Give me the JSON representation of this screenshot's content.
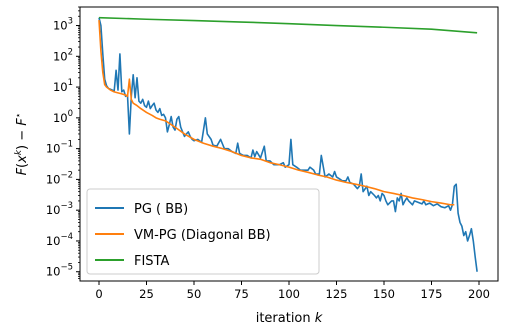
{
  "chart_data": {
    "type": "line",
    "yscale": "log",
    "title": "",
    "xlabel": "iteration k",
    "ylabel": "F(x^k) − F*",
    "xlim": [
      -10,
      210
    ],
    "ylim": [
      5e-06,
      4000
    ],
    "xticks": [
      0,
      25,
      50,
      75,
      100,
      125,
      150,
      175,
      200
    ],
    "yticks": [
      {
        "value": 1000.0,
        "base": "10",
        "exp": "3"
      },
      {
        "value": 100.0,
        "base": "10",
        "exp": "2"
      },
      {
        "value": 10.0,
        "base": "10",
        "exp": "1"
      },
      {
        "value": 1.0,
        "base": "10",
        "exp": "0"
      },
      {
        "value": 0.1,
        "base": "10",
        "exp": "−1"
      },
      {
        "value": 0.01,
        "base": "10",
        "exp": "−2"
      },
      {
        "value": 0.001,
        "base": "10",
        "exp": "−3"
      },
      {
        "value": 0.0001,
        "base": "10",
        "exp": "−4"
      },
      {
        "value": 1e-05,
        "base": "10",
        "exp": "−5"
      }
    ],
    "grid": false,
    "legend_position": "bottom-left",
    "series": [
      {
        "name": "PG ( BB)",
        "color": "#1f77b4",
        "points": [
          [
            0,
            1800
          ],
          [
            1,
            1000
          ],
          [
            2,
            120
          ],
          [
            3,
            18
          ],
          [
            4,
            11
          ],
          [
            5,
            9
          ],
          [
            6,
            8.5
          ],
          [
            7,
            8
          ],
          [
            8,
            7.5
          ],
          [
            9,
            35
          ],
          [
            10,
            8
          ],
          [
            11,
            120
          ],
          [
            12,
            7
          ],
          [
            13,
            8
          ],
          [
            14,
            5
          ],
          [
            15,
            5.5
          ],
          [
            16,
            0.3
          ],
          [
            17,
            5
          ],
          [
            18,
            25
          ],
          [
            19,
            4.5
          ],
          [
            20,
            20
          ],
          [
            21,
            3.5
          ],
          [
            22,
            3
          ],
          [
            23,
            4
          ],
          [
            24,
            2.5
          ],
          [
            25,
            2.2
          ],
          [
            26,
            3.5
          ],
          [
            27,
            2
          ],
          [
            28,
            2.5
          ],
          [
            29,
            3
          ],
          [
            30,
            1.8
          ],
          [
            31,
            1.5
          ],
          [
            32,
            2
          ],
          [
            33,
            1.2
          ],
          [
            34,
            1.3
          ],
          [
            35,
            1
          ],
          [
            36,
            0.35
          ],
          [
            37,
            0.6
          ],
          [
            38,
            1.1
          ],
          [
            39,
            0.5
          ],
          [
            40,
            0.4
          ],
          [
            41,
            0.9
          ],
          [
            42,
            1.1
          ],
          [
            43,
            0.5
          ],
          [
            44,
            0.35
          ],
          [
            45,
            0.25
          ],
          [
            46,
            0.3
          ],
          [
            47,
            0.35
          ],
          [
            48,
            0.25
          ],
          [
            49,
            0.2
          ],
          [
            50,
            0.18
          ],
          [
            52,
            0.2
          ],
          [
            54,
            0.16
          ],
          [
            56,
            1
          ],
          [
            57,
            0.3
          ],
          [
            59,
            0.2
          ],
          [
            60,
            0.13
          ],
          [
            62,
            0.12
          ],
          [
            64,
            0.2
          ],
          [
            66,
            0.1
          ],
          [
            68,
            0.1
          ],
          [
            70,
            0.08
          ],
          [
            72,
            0.07
          ],
          [
            73,
            0.15
          ],
          [
            74,
            0.07
          ],
          [
            76,
            0.06
          ],
          [
            78,
            0.06
          ],
          [
            80,
            0.05
          ],
          [
            81,
            0.09
          ],
          [
            82,
            0.055
          ],
          [
            83,
            0.08
          ],
          [
            85,
            0.05
          ],
          [
            87,
            0.12
          ],
          [
            88,
            0.04
          ],
          [
            90,
            0.04
          ],
          [
            92,
            0.03
          ],
          [
            95,
            0.03
          ],
          [
            97,
            0.035
          ],
          [
            98,
            0.025
          ],
          [
            100,
            0.03
          ],
          [
            101,
            0.2
          ],
          [
            102,
            0.03
          ],
          [
            104,
            0.025
          ],
          [
            106,
            0.02
          ],
          [
            108,
            0.02
          ],
          [
            110,
            0.02
          ],
          [
            111,
            0.025
          ],
          [
            113,
            0.02
          ],
          [
            114,
            0.015
          ],
          [
            116,
            0.015
          ],
          [
            117,
            0.06
          ],
          [
            119,
            0.012
          ],
          [
            121,
            0.015
          ],
          [
            123,
            0.012
          ],
          [
            124,
            0.018
          ],
          [
            125,
            0.012
          ],
          [
            126,
            0.011
          ],
          [
            127,
            0.01
          ],
          [
            128,
            0.009
          ],
          [
            130,
            0.009
          ],
          [
            131,
            0.012
          ],
          [
            132,
            0.008
          ],
          [
            134,
            0.007
          ],
          [
            136,
            0.005
          ],
          [
            137,
            0.006
          ],
          [
            138,
            0.015
          ],
          [
            139,
            0.004
          ],
          [
            141,
            0.006
          ],
          [
            142,
            0.003
          ],
          [
            143,
            0.004
          ],
          [
            145,
            0.003
          ],
          [
            146,
            0.0025
          ],
          [
            147,
            0.003
          ],
          [
            148,
            0.002
          ],
          [
            149,
            0.0035
          ],
          [
            150,
            0.003
          ],
          [
            151,
            0.002
          ],
          [
            152,
            0.0015
          ],
          [
            154,
            0.002
          ],
          [
            155,
            0.002
          ],
          [
            156,
            0.0009
          ],
          [
            157,
            0.0025
          ],
          [
            158,
            0.002
          ],
          [
            159,
            0.0035
          ],
          [
            160,
            0.0015
          ],
          [
            161,
            0.002
          ],
          [
            162,
            0.0025
          ],
          [
            163,
            0.002
          ],
          [
            165,
            0.0015
          ],
          [
            166,
            0.002
          ],
          [
            168,
            0.0018
          ],
          [
            170,
            0.0016
          ],
          [
            171,
            0.002
          ],
          [
            172,
            0.0015
          ],
          [
            174,
            0.0017
          ],
          [
            176,
            0.0014
          ],
          [
            178,
            0.0016
          ],
          [
            180,
            0.0013
          ],
          [
            182,
            0.0012
          ],
          [
            184,
            0.0014
          ],
          [
            185,
            0.001
          ],
          [
            186,
            0.0015
          ],
          [
            187,
            0.006
          ],
          [
            188,
            0.007
          ],
          [
            189,
            0.0008
          ],
          [
            190,
            0.0004
          ],
          [
            191,
            0.0003
          ],
          [
            192,
            0.00015
          ],
          [
            193,
            0.0002
          ],
          [
            194,
            0.0001
          ],
          [
            195,
            0.00015
          ],
          [
            196,
            0.00025
          ],
          [
            197,
            0.0001
          ],
          [
            198,
            3e-05
          ],
          [
            199,
            1e-05
          ]
        ]
      },
      {
        "name": "VM-PG (Diagonal BB)",
        "color": "#ff7f0e",
        "points": [
          [
            0,
            1500
          ],
          [
            1,
            150
          ],
          [
            2,
            30
          ],
          [
            3,
            12
          ],
          [
            4,
            10
          ],
          [
            5,
            9
          ],
          [
            6,
            8
          ],
          [
            8,
            7
          ],
          [
            10,
            6.5
          ],
          [
            12,
            6
          ],
          [
            14,
            5.5
          ],
          [
            15,
            5
          ],
          [
            16,
            18
          ],
          [
            17,
            4
          ],
          [
            18,
            3
          ],
          [
            20,
            2.5
          ],
          [
            22,
            2
          ],
          [
            25,
            1.5
          ],
          [
            28,
            1.2
          ],
          [
            30,
            1
          ],
          [
            32,
            0.9
          ],
          [
            35,
            0.8
          ],
          [
            40,
            0.5
          ],
          [
            45,
            0.3
          ],
          [
            50,
            0.2
          ],
          [
            55,
            0.15
          ],
          [
            60,
            0.12
          ],
          [
            65,
            0.1
          ],
          [
            70,
            0.08
          ],
          [
            75,
            0.06
          ],
          [
            80,
            0.05
          ],
          [
            85,
            0.045
          ],
          [
            90,
            0.035
          ],
          [
            95,
            0.03
          ],
          [
            100,
            0.025
          ],
          [
            105,
            0.02
          ],
          [
            110,
            0.017
          ],
          [
            115,
            0.014
          ],
          [
            120,
            0.012
          ],
          [
            125,
            0.0095
          ],
          [
            130,
            0.008
          ],
          [
            135,
            0.007
          ],
          [
            140,
            0.006
          ],
          [
            145,
            0.005
          ],
          [
            150,
            0.004
          ],
          [
            155,
            0.0035
          ],
          [
            160,
            0.003
          ],
          [
            165,
            0.0025
          ],
          [
            170,
            0.0022
          ],
          [
            175,
            0.0019
          ],
          [
            180,
            0.0017
          ],
          [
            185,
            0.0015
          ],
          [
            187,
            0.0015
          ]
        ]
      },
      {
        "name": "FISTA",
        "color": "#2ca02c",
        "points": [
          [
            0,
            1800
          ],
          [
            25,
            1600
          ],
          [
            50,
            1450
          ],
          [
            75,
            1300
          ],
          [
            100,
            1150
          ],
          [
            125,
            1000
          ],
          [
            150,
            880
          ],
          [
            175,
            760
          ],
          [
            199,
            580
          ]
        ]
      }
    ]
  }
}
